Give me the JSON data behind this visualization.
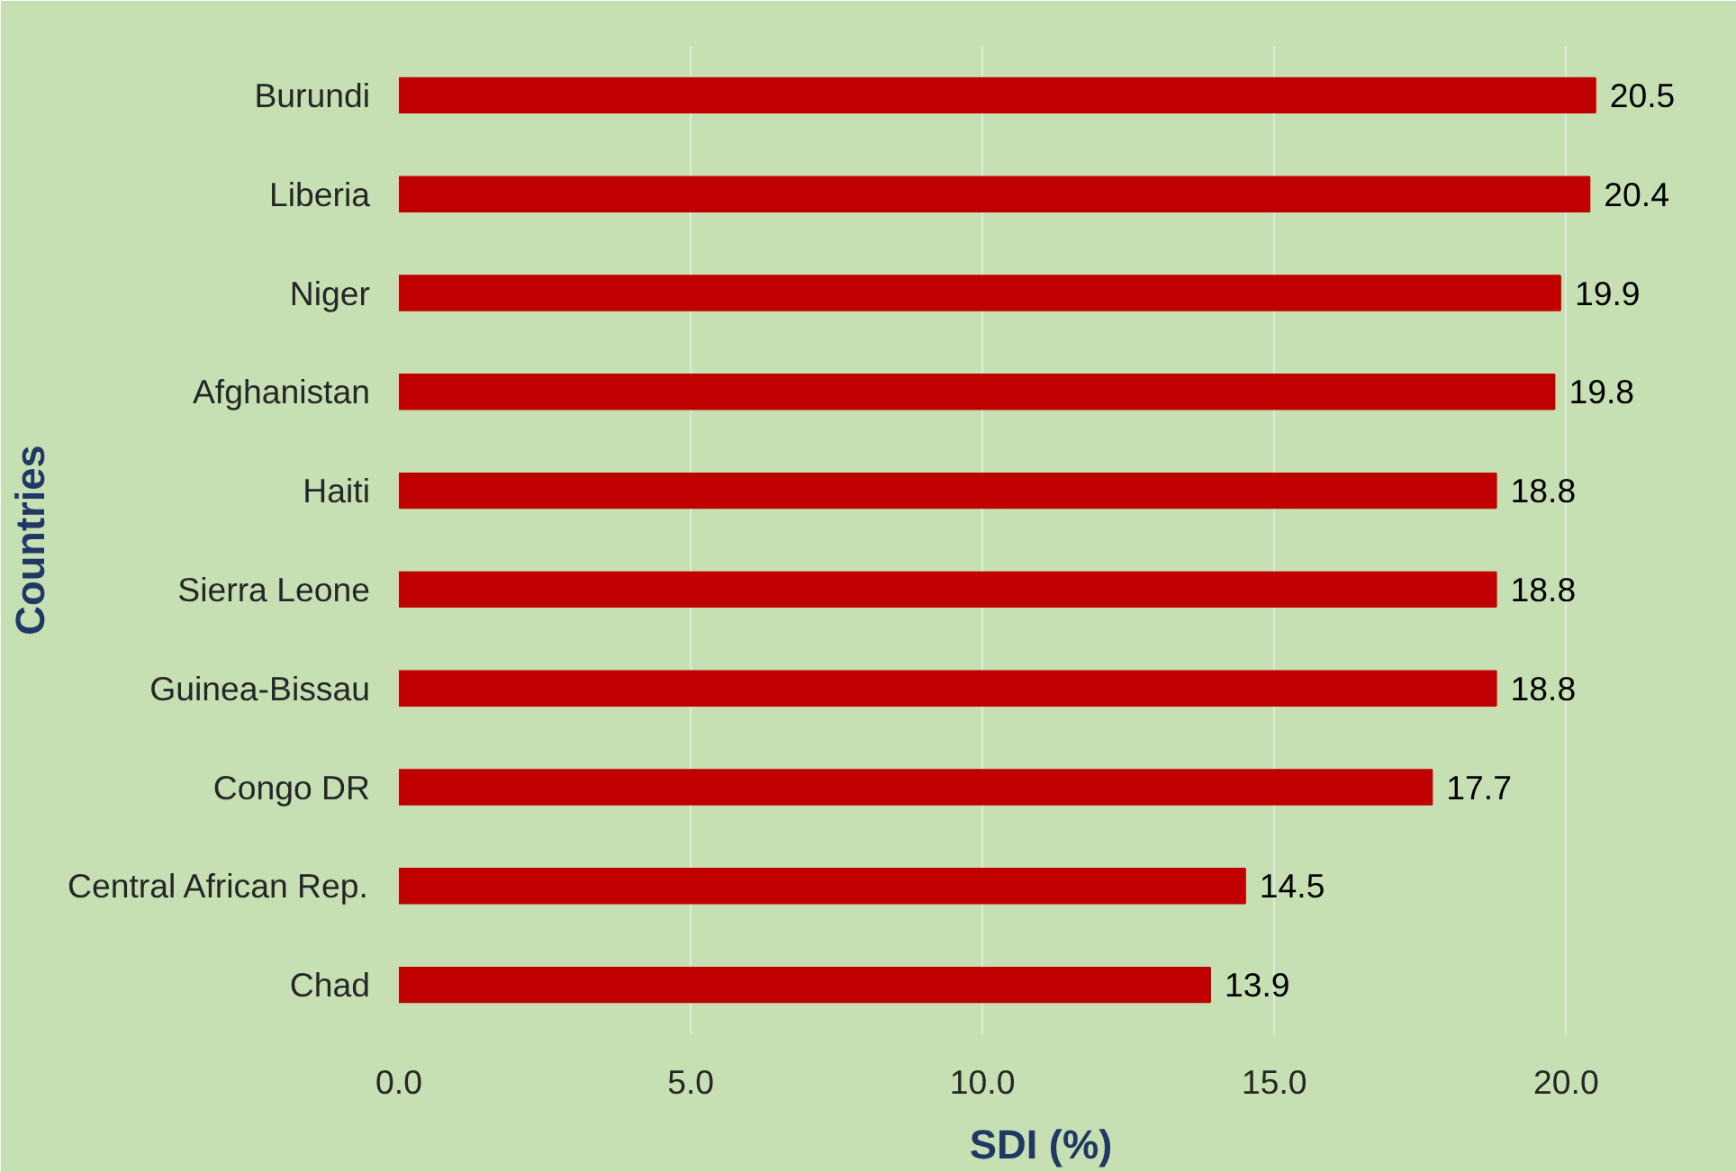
{
  "chart_data": {
    "type": "bar",
    "orientation": "horizontal",
    "xlabel": "SDI (%)",
    "ylabel": "Countries",
    "categories": [
      "Burundi",
      "Liberia",
      "Niger",
      "Afghanistan",
      "Haiti",
      "Sierra Leone",
      "Guinea-Bissau",
      "Congo DR",
      "Central African Rep.",
      "Chad"
    ],
    "values": [
      20.5,
      20.4,
      19.9,
      19.8,
      18.8,
      18.8,
      18.8,
      17.7,
      14.5,
      13.9
    ],
    "color": "#c00000",
    "data_labels": true,
    "xlim": [
      0,
      22
    ],
    "xticks": [
      {
        "value": 0,
        "label": "0.0"
      },
      {
        "value": 5,
        "label": "5.0"
      },
      {
        "value": 10,
        "label": "10.0"
      },
      {
        "value": 15,
        "label": "15.0"
      },
      {
        "value": 20,
        "label": "20.0"
      }
    ],
    "grid": "x"
  }
}
